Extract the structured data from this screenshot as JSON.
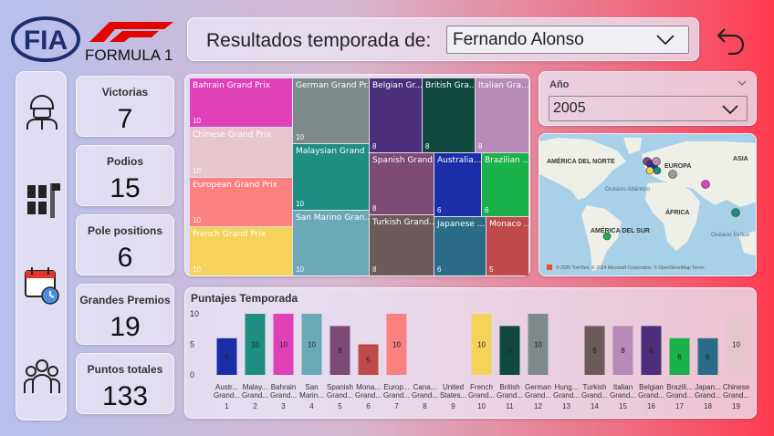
{
  "header": {
    "title": "Resultados temporada de:",
    "driver": "Fernando Alonso",
    "f1_logo_text": "FORMULA 1",
    "fia_logo_text": "FIA"
  },
  "kpis": [
    {
      "label": "Victorias",
      "value": "7"
    },
    {
      "label": "Podios",
      "value": "15"
    },
    {
      "label": "Pole positions",
      "value": "6"
    },
    {
      "label": "Grandes Premios",
      "value": "19"
    },
    {
      "label": "Puntos totales",
      "value": "133"
    }
  ],
  "year_slicer": {
    "label": "Año",
    "value": "2005"
  },
  "sidebar_icons": [
    "driver-icon",
    "cars-grid-icon",
    "calendar-icon",
    "team-icon"
  ],
  "map": {
    "labels": [
      "AMÉRICA DEL NORTE",
      "EUROPA",
      "ASIA",
      "Océano Atlántico",
      "ÁFRICA",
      "AMÉRICA DEL SUR",
      "Océano Índico"
    ],
    "attribution": "© 2025 TomTom, © 2024 Microsoft Corporation, © OpenStreetMap  Terms"
  },
  "chart_data": [
    {
      "type": "treemap",
      "items": [
        {
          "name": "Bahrain Grand Prix",
          "value": 10,
          "color": "#e040b8"
        },
        {
          "name": "Chinese Grand Prix",
          "value": 10,
          "color": "#e6c6cc"
        },
        {
          "name": "European Grand Prix",
          "value": 10,
          "color": "#fb8080"
        },
        {
          "name": "French Grand Prix",
          "value": 10,
          "color": "#f5d35a"
        },
        {
          "name": "German Grand Pr...",
          "value": 10,
          "color": "#7d8a8a"
        },
        {
          "name": "Malaysian Grand ...",
          "value": 10,
          "color": "#1e8e80"
        },
        {
          "name": "San Marino Gran...",
          "value": 10,
          "color": "#6ba8b8"
        },
        {
          "name": "Belgian Gr...",
          "value": 8,
          "color": "#4b2f7c"
        },
        {
          "name": "British Gra...",
          "value": 8,
          "color": "#104840"
        },
        {
          "name": "Italian Gra...",
          "value": 8,
          "color": "#b78ab8"
        },
        {
          "name": "Spanish Grand...",
          "value": 8,
          "color": "#7c4a74"
        },
        {
          "name": "Turkish Grand...",
          "value": 8,
          "color": "#6c5a5a"
        },
        {
          "name": "Australia...",
          "value": 6,
          "color": "#1a2ea8"
        },
        {
          "name": "Brazilian ...",
          "value": 6,
          "color": "#1ab04a"
        },
        {
          "name": "Japanese ...",
          "value": 6,
          "color": "#2a6c88"
        },
        {
          "name": "Monaco ...",
          "value": 5,
          "color": "#c04a4a"
        }
      ]
    },
    {
      "type": "bar",
      "title": "Puntajes Temporada",
      "ylim": [
        0,
        10
      ],
      "yticks": [
        "0",
        "5",
        "10"
      ],
      "categories": [
        {
          "name": [
            "Austr...",
            "Grand..."
          ],
          "round": "1",
          "value": 6,
          "color": "#1a2ea8"
        },
        {
          "name": [
            "Malay...",
            "Grand..."
          ],
          "round": "2",
          "value": 10,
          "color": "#1e8e80"
        },
        {
          "name": [
            "Bahrain",
            "Grand..."
          ],
          "round": "3",
          "value": 10,
          "color": "#e040b8"
        },
        {
          "name": [
            "San",
            "Marin..."
          ],
          "round": "4",
          "value": 10,
          "color": "#6ba8b8"
        },
        {
          "name": [
            "Spanish",
            "Grand..."
          ],
          "round": "5",
          "value": 8,
          "color": "#7c4a74"
        },
        {
          "name": [
            "Mona...",
            "Grand..."
          ],
          "round": "6",
          "value": 5,
          "color": "#c04a4a"
        },
        {
          "name": [
            "Europ...",
            "Grand..."
          ],
          "round": "7",
          "value": 10,
          "color": "#fb8080"
        },
        {
          "name": [
            "Cana...",
            "Grand..."
          ],
          "round": "8",
          "value": 0,
          "color": "#999999"
        },
        {
          "name": [
            "United",
            "States..."
          ],
          "round": "9",
          "value": 0,
          "color": "#999999"
        },
        {
          "name": [
            "French",
            "Grand..."
          ],
          "round": "10",
          "value": 10,
          "color": "#f5d35a"
        },
        {
          "name": [
            "British",
            "Grand..."
          ],
          "round": "11",
          "value": 8,
          "color": "#104840"
        },
        {
          "name": [
            "German",
            "Grand..."
          ],
          "round": "12",
          "value": 10,
          "color": "#7d8a8a"
        },
        {
          "name": [
            "Hung...",
            "Grand..."
          ],
          "round": "13",
          "value": 0,
          "color": "#999999"
        },
        {
          "name": [
            "Turkish",
            "Grand..."
          ],
          "round": "14",
          "value": 8,
          "color": "#6c5a5a"
        },
        {
          "name": [
            "Italian",
            "Grand..."
          ],
          "round": "15",
          "value": 8,
          "color": "#b78ab8"
        },
        {
          "name": [
            "Belgian",
            "Grand..."
          ],
          "round": "16",
          "value": 8,
          "color": "#4b2f7c"
        },
        {
          "name": [
            "Brazili...",
            "Grand..."
          ],
          "round": "17",
          "value": 6,
          "color": "#1ab04a"
        },
        {
          "name": [
            "Japan...",
            "Grand..."
          ],
          "round": "18",
          "value": 6,
          "color": "#2a6c88"
        },
        {
          "name": [
            "Chinese",
            "Grand..."
          ],
          "round": "19",
          "value": 10,
          "color": "#e6c6cc"
        }
      ]
    }
  ]
}
